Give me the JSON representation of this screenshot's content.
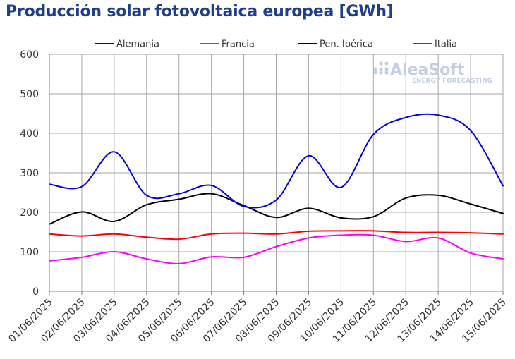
{
  "chart_data": {
    "type": "line",
    "title": "Producción solar fotovoltaica europea [GWh]",
    "xlabel": "",
    "ylabel": "",
    "categories": [
      "01/06/2025",
      "02/06/2025",
      "03/06/2025",
      "04/06/2025",
      "05/06/2025",
      "06/06/2025",
      "07/06/2025",
      "08/06/2025",
      "09/06/2025",
      "10/06/2025",
      "11/06/2025",
      "12/06/2025",
      "13/06/2025",
      "14/06/2025",
      "15/06/2025"
    ],
    "ylim": [
      0,
      600
    ],
    "yticks": [
      0,
      100,
      200,
      300,
      400,
      500,
      600
    ],
    "grid": true,
    "legend_position": "top",
    "series": [
      {
        "name": "Alemania",
        "color": "#0000e6",
        "values": [
          271,
          265,
          353,
          243,
          247,
          268,
          215,
          231,
          343,
          263,
          397,
          440,
          446,
          407,
          267
        ]
      },
      {
        "name": "Francia",
        "color": "#ff00ff",
        "values": [
          77,
          86,
          100,
          82,
          70,
          87,
          86,
          113,
          135,
          142,
          142,
          126,
          135,
          97,
          82
        ]
      },
      {
        "name": "Pen. Ibérica",
        "color": "#000000",
        "values": [
          170,
          201,
          177,
          219,
          233,
          247,
          217,
          187,
          210,
          186,
          189,
          236,
          243,
          221,
          197
        ]
      },
      {
        "name": "Italia",
        "color": "#ff0000",
        "values": [
          145,
          140,
          145,
          137,
          132,
          145,
          147,
          145,
          152,
          153,
          153,
          149,
          149,
          148,
          145
        ]
      }
    ]
  },
  "logo": {
    "name": "AleaSoft",
    "tagline": "ENERGY FORECASTING"
  }
}
